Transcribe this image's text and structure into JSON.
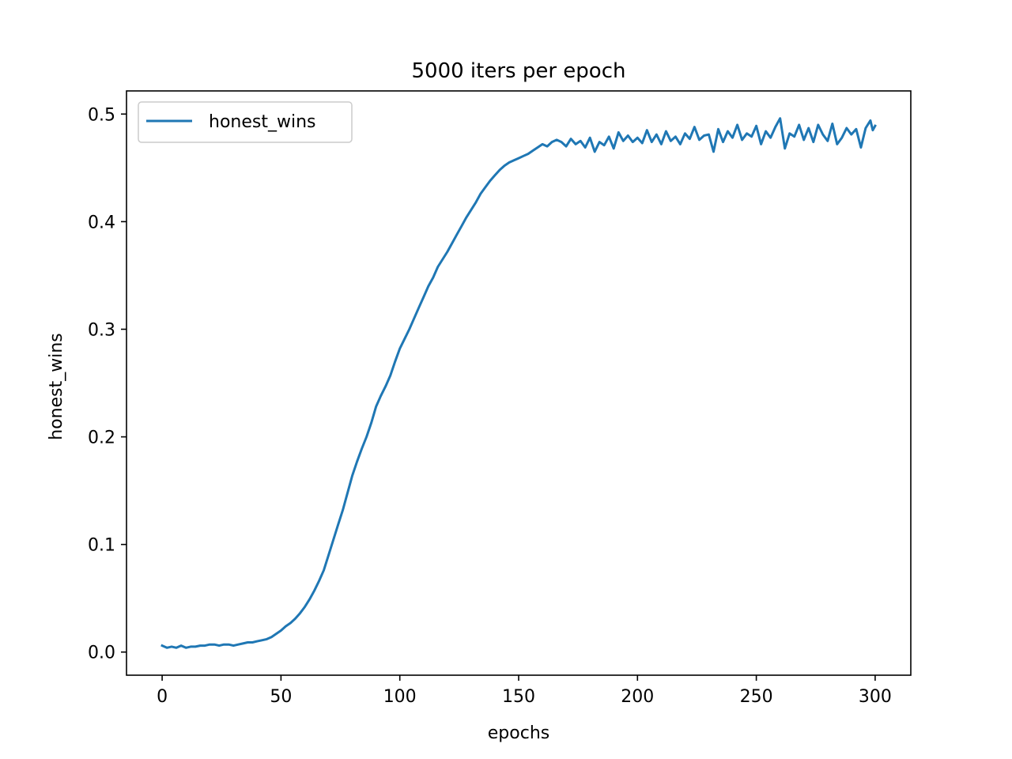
{
  "chart_data": {
    "type": "line",
    "title": "5000 iters per epoch",
    "xlabel": "epochs",
    "ylabel": "honest_wins",
    "xlim": [
      -15,
      315
    ],
    "ylim": [
      -0.0215,
      0.5215
    ],
    "xticks": [
      0,
      50,
      100,
      150,
      200,
      250,
      300
    ],
    "yticks": [
      0.0,
      0.1,
      0.2,
      0.3,
      0.4,
      0.5
    ],
    "xtick_labels": [
      "0",
      "50",
      "100",
      "150",
      "200",
      "250",
      "300"
    ],
    "ytick_labels": [
      "0.0",
      "0.1",
      "0.2",
      "0.3",
      "0.4",
      "0.5"
    ],
    "grid": false,
    "legend": {
      "position": "upper-left",
      "entries": [
        "honest_wins"
      ]
    },
    "colors": {
      "series": "#1f77b4",
      "axes": "#000000",
      "legend_border": "#cccccc"
    },
    "series": [
      {
        "name": "honest_wins",
        "points": [
          [
            0,
            0.006
          ],
          [
            2,
            0.004
          ],
          [
            4,
            0.005
          ],
          [
            6,
            0.004
          ],
          [
            8,
            0.006
          ],
          [
            10,
            0.004
          ],
          [
            12,
            0.005
          ],
          [
            14,
            0.005
          ],
          [
            16,
            0.006
          ],
          [
            18,
            0.006
          ],
          [
            20,
            0.007
          ],
          [
            22,
            0.007
          ],
          [
            24,
            0.006
          ],
          [
            26,
            0.007
          ],
          [
            28,
            0.007
          ],
          [
            30,
            0.006
          ],
          [
            32,
            0.007
          ],
          [
            34,
            0.008
          ],
          [
            36,
            0.009
          ],
          [
            38,
            0.009
          ],
          [
            40,
            0.01
          ],
          [
            42,
            0.011
          ],
          [
            44,
            0.012
          ],
          [
            46,
            0.014
          ],
          [
            48,
            0.017
          ],
          [
            50,
            0.02
          ],
          [
            52,
            0.024
          ],
          [
            54,
            0.027
          ],
          [
            56,
            0.031
          ],
          [
            58,
            0.036
          ],
          [
            60,
            0.042
          ],
          [
            62,
            0.049
          ],
          [
            64,
            0.057
          ],
          [
            66,
            0.066
          ],
          [
            68,
            0.076
          ],
          [
            70,
            0.09
          ],
          [
            72,
            0.104
          ],
          [
            74,
            0.118
          ],
          [
            76,
            0.132
          ],
          [
            78,
            0.148
          ],
          [
            80,
            0.164
          ],
          [
            82,
            0.177
          ],
          [
            84,
            0.189
          ],
          [
            86,
            0.2
          ],
          [
            88,
            0.213
          ],
          [
            90,
            0.228
          ],
          [
            92,
            0.238
          ],
          [
            94,
            0.247
          ],
          [
            96,
            0.257
          ],
          [
            98,
            0.27
          ],
          [
            100,
            0.282
          ],
          [
            102,
            0.291
          ],
          [
            104,
            0.3
          ],
          [
            106,
            0.31
          ],
          [
            108,
            0.32
          ],
          [
            110,
            0.33
          ],
          [
            112,
            0.34
          ],
          [
            114,
            0.348
          ],
          [
            116,
            0.358
          ],
          [
            118,
            0.365
          ],
          [
            120,
            0.372
          ],
          [
            122,
            0.38
          ],
          [
            124,
            0.388
          ],
          [
            126,
            0.396
          ],
          [
            128,
            0.404
          ],
          [
            130,
            0.411
          ],
          [
            132,
            0.418
          ],
          [
            134,
            0.426
          ],
          [
            136,
            0.432
          ],
          [
            138,
            0.438
          ],
          [
            140,
            0.443
          ],
          [
            142,
            0.448
          ],
          [
            144,
            0.452
          ],
          [
            146,
            0.455
          ],
          [
            148,
            0.457
          ],
          [
            150,
            0.459
          ],
          [
            152,
            0.461
          ],
          [
            154,
            0.463
          ],
          [
            156,
            0.466
          ],
          [
            158,
            0.469
          ],
          [
            160,
            0.472
          ],
          [
            162,
            0.47
          ],
          [
            164,
            0.474
          ],
          [
            166,
            0.476
          ],
          [
            168,
            0.474
          ],
          [
            170,
            0.47
          ],
          [
            172,
            0.477
          ],
          [
            174,
            0.472
          ],
          [
            176,
            0.475
          ],
          [
            178,
            0.469
          ],
          [
            180,
            0.478
          ],
          [
            182,
            0.465
          ],
          [
            184,
            0.474
          ],
          [
            186,
            0.471
          ],
          [
            188,
            0.479
          ],
          [
            190,
            0.468
          ],
          [
            192,
            0.483
          ],
          [
            194,
            0.475
          ],
          [
            196,
            0.48
          ],
          [
            198,
            0.474
          ],
          [
            200,
            0.478
          ],
          [
            202,
            0.473
          ],
          [
            204,
            0.485
          ],
          [
            206,
            0.474
          ],
          [
            208,
            0.481
          ],
          [
            210,
            0.472
          ],
          [
            212,
            0.484
          ],
          [
            214,
            0.475
          ],
          [
            216,
            0.479
          ],
          [
            218,
            0.472
          ],
          [
            220,
            0.482
          ],
          [
            222,
            0.477
          ],
          [
            224,
            0.488
          ],
          [
            226,
            0.476
          ],
          [
            228,
            0.48
          ],
          [
            230,
            0.481
          ],
          [
            232,
            0.465
          ],
          [
            234,
            0.486
          ],
          [
            236,
            0.474
          ],
          [
            238,
            0.484
          ],
          [
            240,
            0.478
          ],
          [
            242,
            0.49
          ],
          [
            244,
            0.476
          ],
          [
            246,
            0.482
          ],
          [
            248,
            0.479
          ],
          [
            250,
            0.489
          ],
          [
            252,
            0.472
          ],
          [
            254,
            0.484
          ],
          [
            256,
            0.478
          ],
          [
            258,
            0.488
          ],
          [
            260,
            0.496
          ],
          [
            262,
            0.468
          ],
          [
            264,
            0.482
          ],
          [
            266,
            0.479
          ],
          [
            268,
            0.49
          ],
          [
            270,
            0.476
          ],
          [
            272,
            0.487
          ],
          [
            274,
            0.474
          ],
          [
            276,
            0.49
          ],
          [
            278,
            0.481
          ],
          [
            280,
            0.475
          ],
          [
            282,
            0.491
          ],
          [
            284,
            0.472
          ],
          [
            286,
            0.478
          ],
          [
            288,
            0.487
          ],
          [
            290,
            0.481
          ],
          [
            292,
            0.486
          ],
          [
            294,
            0.469
          ],
          [
            296,
            0.487
          ],
          [
            298,
            0.494
          ],
          [
            299,
            0.485
          ],
          [
            300,
            0.489
          ]
        ]
      }
    ]
  }
}
